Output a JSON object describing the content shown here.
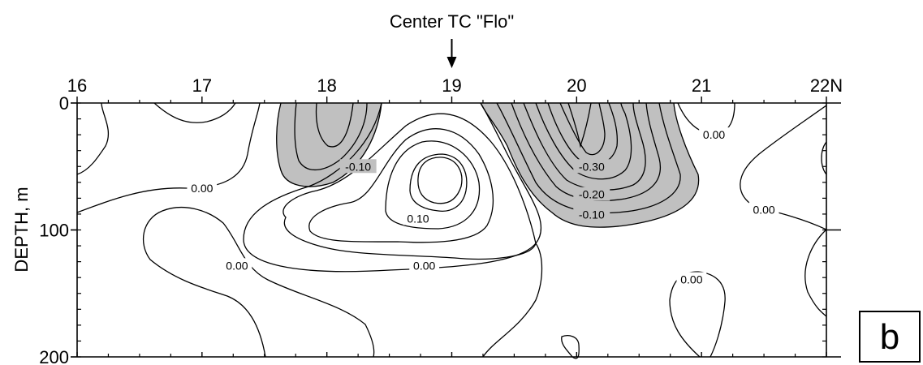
{
  "chart_data": {
    "type": "contour",
    "title": "",
    "xlabel": "",
    "ylabel": "DEPTH, m",
    "x_unit": "N",
    "xlim": [
      16,
      22
    ],
    "ylim": [
      0,
      200
    ],
    "y_inverted": true,
    "x_ticks": [
      "16",
      "17",
      "18",
      "19",
      "20",
      "21",
      "22"
    ],
    "y_ticks": [
      "0",
      "100",
      "200"
    ],
    "negative_fill": "#c0c0c0",
    "contour_interval": 0.05,
    "annotation": {
      "text": "Center TC \"Flo\"",
      "x": 19
    },
    "contour_labels": [
      {
        "text": "-0.10",
        "x": 18.25,
        "y": 50
      },
      {
        "text": "0.00",
        "x": 17.0,
        "y": 67
      },
      {
        "text": "0.10",
        "x": 18.73,
        "y": 91
      },
      {
        "text": "0.00",
        "x": 17.28,
        "y": 128
      },
      {
        "text": "0.00",
        "x": 18.78,
        "y": 128
      },
      {
        "text": "-0.30",
        "x": 20.12,
        "y": 50
      },
      {
        "text": "-0.20",
        "x": 20.12,
        "y": 72
      },
      {
        "text": "-0.10",
        "x": 20.12,
        "y": 88
      },
      {
        "text": "0.00",
        "x": 21.1,
        "y": 25
      },
      {
        "text": "0.00",
        "x": 21.5,
        "y": 84
      },
      {
        "text": "0.00",
        "x": 20.92,
        "y": 139
      }
    ]
  },
  "panel_label": "b"
}
